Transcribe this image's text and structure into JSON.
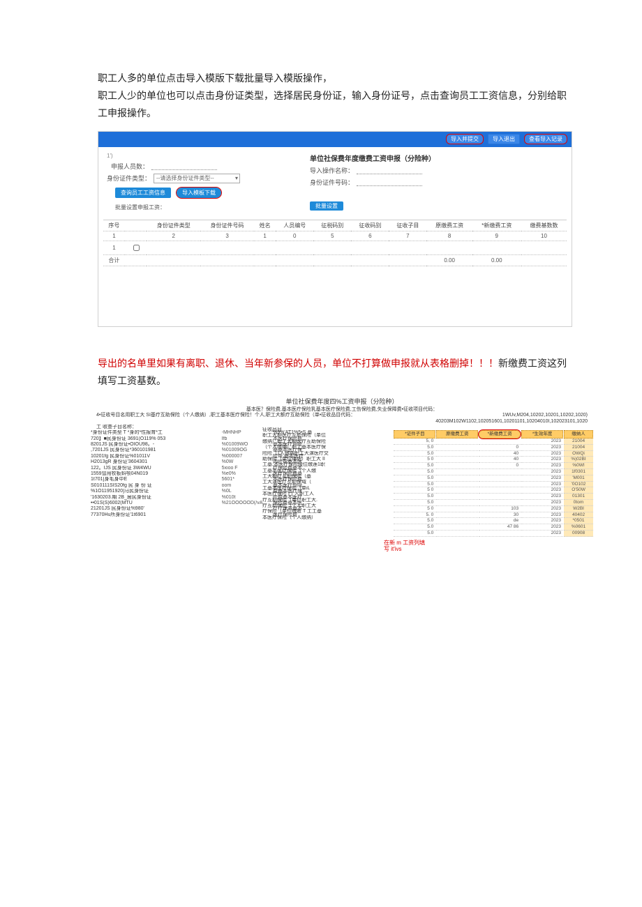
{
  "intro": {
    "line1": "职工人多的单位点击导入模版下载批量导入模版操作，",
    "line2": "职工人少的单位也可以点击身份证类型，选择居民身份证，输入身份证号，点击查询员工工资信息，分别给职工申报操作。"
  },
  "app": {
    "topbar": {
      "btn1": "导入并提交",
      "btn2": "导入退出",
      "btn3": "查看导入记录"
    },
    "panel_title": "单位社保费年度缴费工资申报（分险种）",
    "left_form": {
      "label_renshu": "申报人员数：",
      "renshu_placeholder": "",
      "label_zjtype": "身份证件类型：",
      "zjtype_placeholder": "--请选择身份证件类型--",
      "btn_query": "查询员工工资信息",
      "btn_template": "导入模板下载",
      "sub_label": "批量设置申报工资："
    },
    "right_form": {
      "label_djxh": "导入操作名称：",
      "label_zjhm": "身份证件号码："
    },
    "batch_btn": "批量设置",
    "table": {
      "headers": [
        "序号",
        "",
        "身份证件类型",
        "身份证件号码",
        "姓名",
        "人员编号",
        "征税码别",
        "征收码别",
        "征收子目",
        "原缴费工资",
        "*新缴费工资",
        "缴费基数数"
      ],
      "row_nums": [
        "1",
        "",
        "2",
        "3",
        "1",
        "0",
        "5",
        "6",
        "7",
        "8",
        "9",
        "10"
      ],
      "footer_label": "合计",
      "footer_v1": "0.00",
      "footer_v2": "0.00"
    }
  },
  "warning": {
    "red_part": "导出的名单里如果有离职、退休、当年新参保的人员，单位不打算做申报就从表格删掉！！！",
    "black_part": "新缴费工资这列填写工资基数。"
  },
  "excel": {
    "title": "单位社保费年度四%工资申报（分险种）",
    "subtitle": "基本医？保险费,基本医疗保险乳基本医疗保险费,工伤保险费,失业保障费•征收项目代码：",
    "meta_left": "4•征收号目名用职工大 SI基疗互助保险（个人缴纳）,职工基本医疗保险！个人,职工大额疗互助保险（单•征收品目代码：",
    "meta_right": "1WUv,M204,10202,10201,10202,1020)\n40203M102W1102,102051601,10201101,10204010I,102023101,1020",
    "sub_meta": "工 收查子目名称：",
    "left_lines": [
      "*身份证件类型 T *身的*性报育*工",
      "720】■民身份证 3691(O119% 053",
      "8201JS 民身份证•OIOU98。-",
      ",7201JS 民身份证*360101981",
      "10201fg 民身份证%01011V",
      "H2013gR 身份证'3604301",
      "122。IJS 民身份证 3W4WU",
      "1559彗用牧板蚪颚04N019",
      "1t701]身毛身中E",
      "S010111SIS20fg 民 身 份 证",
      "%1O11951920]马民身份证",
      "'1630203.期 2B_居民身份证",
      "••01S(S)6002(MTU",
      "21201JS 民身份证%980'",
      "77370Hu所身份证'1t6901"
    ],
    "mid_lines": [
      "-MHNHP",
      "",
      "Ifb",
      "%01009WO",
      "%01009OG",
      "%000007",
      "%0W",
      "5xioo F",
      "%e0%",
      "5601*",
      "",
      "",
      "oom",
      "",
      "%0L",
      "%010t",
      "%21OOOOOD(/vA"
    ],
    "mid2_lines": [
      "%9%'AT1%5•S 基",
      "本医疗保险费",
      "基本医疗背险",
      "基基本医疗保",
      "险帮 基本医疗",
      "内险帮基本医",
      "疗保险费基本",
      "医疗保险费基",
      "本医疗保险费",
      "基本医疗份隐",
      "费基本医疗保",
      "险费基本医疗",
      "保险费基本医",
      "疗疗保务基本",
      "医疗保险费"
    ],
    "proj_lines": [
      "征收品目",
      "职工大额医疗互助保险（单位",
      "缴纳）职工大额医疗互助保险",
      "（个人缴纳）职工基本医疗保",
      "险险（1人缴纳职工大演医疗交",
      "助保险（单位缰纳）职工大 II",
      "工基.本医疗保险陵位缴莲1职",
      "工基本医疗保险（个人缴",
      "工大额疗互助保险（基",
      "工大演医疗互助保域（",
      "工基本医疗保险（单iL",
      "本医疗保险 I个人职工人",
      "疗互助保险（单位职工大.",
      "疗互助保险（个人职工大",
      "疗保险（单位缴股 T 工工基",
      "本医疗保险（个人缴纳）"
    ],
    "right_table": {
      "headers": [
        "*证件子目",
        "原缴费工资",
        "*新缴费工资",
        "*生效年度",
        "缴纳人"
      ],
      "rows": [
        [
          "5, 0",
          "",
          "",
          "2023",
          "21004"
        ],
        [
          "5.0",
          "",
          "0",
          "2023",
          "21004"
        ],
        [
          "5.0",
          "",
          "40",
          "2023",
          "OWQi"
        ],
        [
          "5 0",
          "",
          "40",
          "2023",
          "%)02BI"
        ],
        [
          "5.0",
          "",
          "0",
          "2023",
          "%0WI"
        ],
        [
          "5.0",
          "",
          "",
          "2023",
          "1f0301"
        ],
        [
          "5.0",
          "",
          "",
          "2023",
          "'M001"
        ],
        [
          "5.0",
          "",
          "",
          "2023",
          "'0O102"
        ],
        [
          "5 0",
          "",
          "",
          "2023",
          "O'50W"
        ],
        [
          "5.0",
          "",
          "",
          "2023",
          "01301"
        ],
        [
          "5.0",
          "",
          "",
          "2023",
          "0tom"
        ],
        [
          "5 0",
          "",
          "103",
          "2023",
          "W2BI"
        ],
        [
          "5. 0",
          "",
          "30",
          "2023",
          "40402"
        ],
        [
          "5.0",
          "",
          "de",
          "2023",
          "*0501"
        ],
        [
          "5.0",
          "",
          "47 86",
          "2023",
          "%0601"
        ],
        [
          "5.0",
          "",
          "",
          "2023",
          "00908"
        ]
      ]
    },
    "red_note_l1": "在新 m 工资列填",
    "red_note_l2": "写 it'ivs"
  },
  "colors": {
    "accent_blue": "#1e6fd9",
    "orange": "#ffcc66",
    "red": "#d00000"
  }
}
